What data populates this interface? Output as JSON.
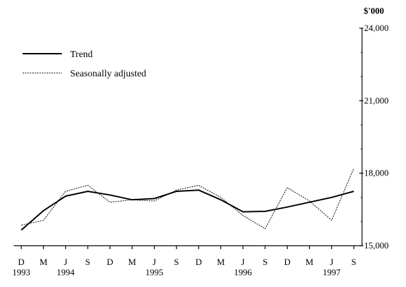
{
  "chart_data": {
    "type": "line",
    "unit_label": "$'000",
    "x_tick_labels": [
      "D",
      "M",
      "J",
      "S",
      "D",
      "M",
      "J",
      "S",
      "D",
      "M",
      "J",
      "S",
      "D",
      "M",
      "J",
      "S"
    ],
    "year_labels": [
      {
        "index": 0,
        "label": "1993"
      },
      {
        "index": 2,
        "label": "1994"
      },
      {
        "index": 6,
        "label": "1995"
      },
      {
        "index": 10,
        "label": "1996"
      },
      {
        "index": 14,
        "label": "1997"
      }
    ],
    "y_ticks": [
      15000,
      18000,
      21000,
      24000
    ],
    "y_tick_labels": [
      "15,000",
      "18,000",
      "21,000",
      "24,000"
    ],
    "ylim": [
      15000,
      24000
    ],
    "series": [
      {
        "name": "Trend",
        "style": "solid",
        "values": [
          15650,
          16450,
          17050,
          17250,
          17100,
          16900,
          16950,
          17250,
          17300,
          16900,
          16400,
          16420,
          16600,
          16800,
          17000,
          17250
        ]
      },
      {
        "name": "Seasonally adjusted",
        "style": "dotted",
        "values": [
          15850,
          16050,
          17250,
          17500,
          16800,
          16900,
          16850,
          17300,
          17500,
          17000,
          16250,
          15700,
          17400,
          16850,
          16050,
          18200
        ]
      }
    ],
    "legend_position": "top-left",
    "grid": false
  }
}
